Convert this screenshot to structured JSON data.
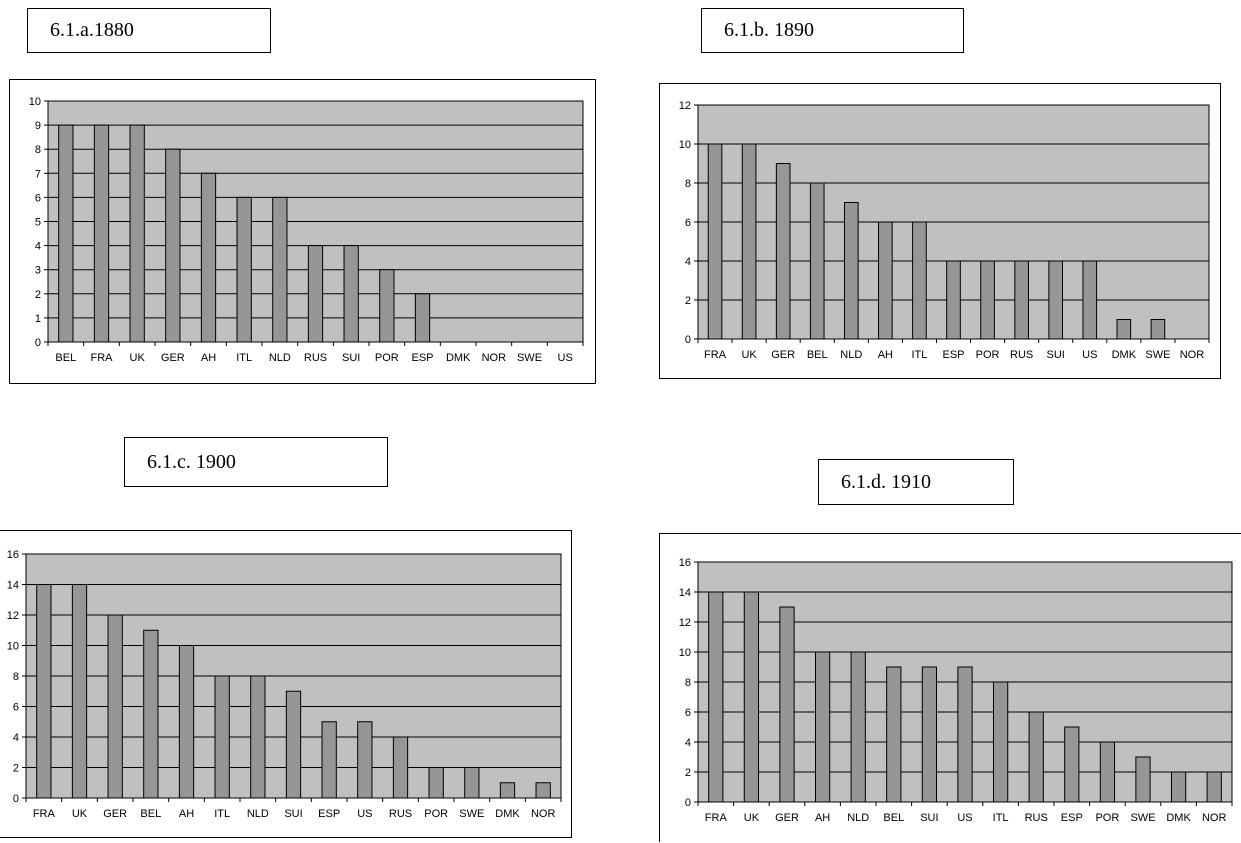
{
  "chart_data": [
    {
      "type": "bar",
      "title": "6.1.a.1880",
      "categories": [
        "BEL",
        "FRA",
        "UK",
        "GER",
        "AH",
        "ITL",
        "NLD",
        "RUS",
        "SUI",
        "POR",
        "ESP",
        "DMK",
        "NOR",
        "SWE",
        "US"
      ],
      "values": [
        9,
        9,
        9,
        8,
        7,
        6,
        6,
        4,
        4,
        3,
        2,
        0,
        0,
        0,
        0
      ],
      "ylim": [
        0,
        10
      ],
      "yticks": [
        0,
        1,
        2,
        3,
        4,
        5,
        6,
        7,
        8,
        9,
        10
      ],
      "grid": true,
      "xlabel": "",
      "ylabel": "",
      "colors": {
        "plot_bg": "#c0c0c0",
        "bar": "#969696"
      }
    },
    {
      "type": "bar",
      "title": "6.1.b. 1890",
      "categories": [
        "FRA",
        "UK",
        "GER",
        "BEL",
        "NLD",
        "AH",
        "ITL",
        "ESP",
        "POR",
        "RUS",
        "SUI",
        "US",
        "DMK",
        "SWE",
        "NOR"
      ],
      "values": [
        10,
        10,
        9,
        8,
        7,
        6,
        6,
        4,
        4,
        4,
        4,
        4,
        1,
        1,
        0
      ],
      "ylim": [
        0,
        12
      ],
      "yticks": [
        0,
        2,
        4,
        6,
        8,
        10,
        12
      ],
      "grid": true,
      "xlabel": "",
      "ylabel": "",
      "colors": {
        "plot_bg": "#c0c0c0",
        "bar": "#969696"
      }
    },
    {
      "type": "bar",
      "title": "6.1.c. 1900",
      "categories": [
        "FRA",
        "UK",
        "GER",
        "BEL",
        "AH",
        "ITL",
        "NLD",
        "SUI",
        "ESP",
        "US",
        "RUS",
        "POR",
        "SWE",
        "DMK",
        "NOR"
      ],
      "values": [
        14,
        14,
        12,
        11,
        10,
        8,
        8,
        7,
        5,
        5,
        4,
        2,
        2,
        1,
        1
      ],
      "ylim": [
        0,
        16
      ],
      "yticks": [
        0,
        2,
        4,
        6,
        8,
        10,
        12,
        14,
        16
      ],
      "grid": true,
      "xlabel": "",
      "ylabel": "",
      "colors": {
        "plot_bg": "#c0c0c0",
        "bar": "#969696"
      }
    },
    {
      "type": "bar",
      "title": "6.1.d. 1910",
      "categories": [
        "FRA",
        "UK",
        "GER",
        "AH",
        "NLD",
        "BEL",
        "SUI",
        "US",
        "ITL",
        "RUS",
        "ESP",
        "POR",
        "SWE",
        "DMK",
        "NOR"
      ],
      "values": [
        14,
        14,
        13,
        10,
        10,
        9,
        9,
        9,
        8,
        6,
        5,
        4,
        3,
        2,
        2
      ],
      "ylim": [
        0,
        16
      ],
      "yticks": [
        0,
        2,
        4,
        6,
        8,
        10,
        12,
        14,
        16
      ],
      "grid": true,
      "xlabel": "",
      "ylabel": "",
      "colors": {
        "plot_bg": "#c0c0c0",
        "bar": "#969696"
      }
    }
  ]
}
